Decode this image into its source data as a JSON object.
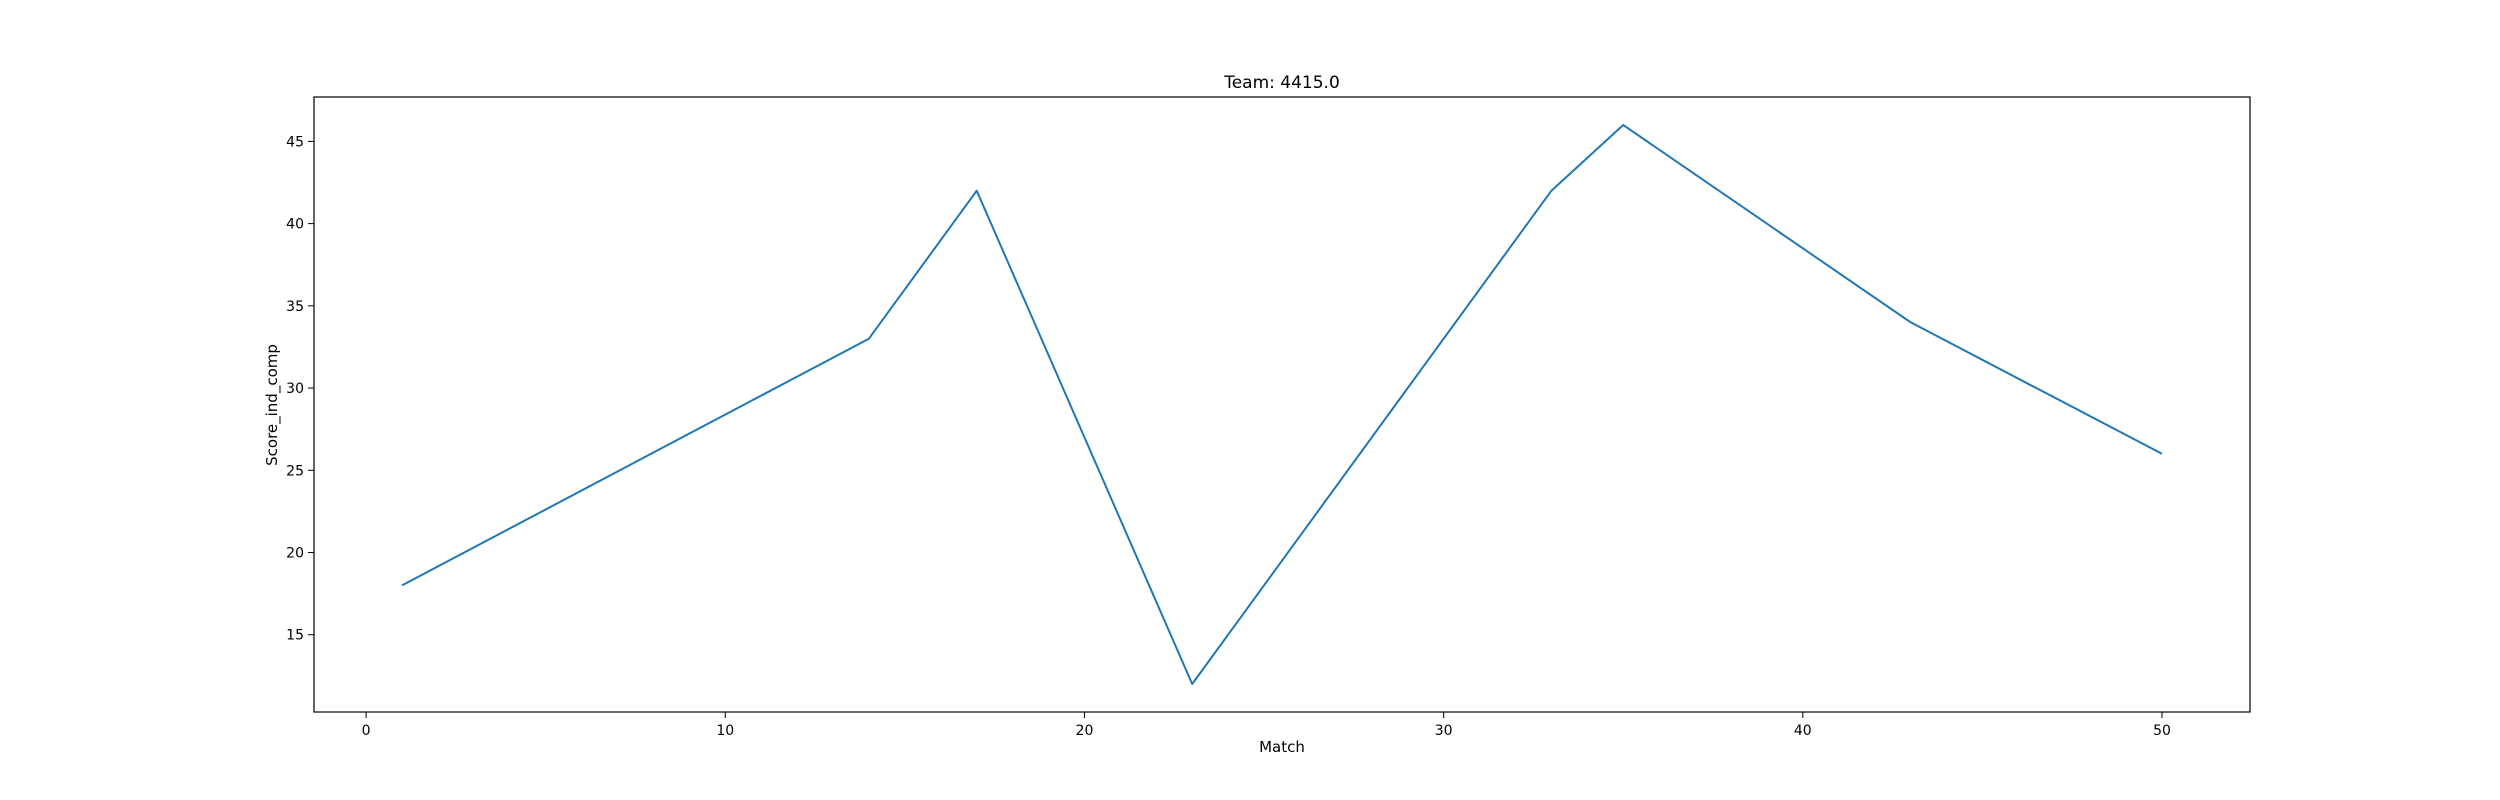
{
  "chart_data": {
    "type": "line",
    "title": "Team: 4415.0",
    "xlabel": "Match",
    "ylabel": "Score_ind_comp",
    "xlim": [
      -1.45,
      52.45
    ],
    "ylim": [
      10.3,
      47.7
    ],
    "xticks": [
      0,
      10,
      20,
      30,
      40,
      50
    ],
    "yticks": [
      15,
      20,
      25,
      30,
      35,
      40,
      45
    ],
    "grid": false,
    "series": [
      {
        "color": "#1f77b4",
        "x": [
          1,
          14,
          17,
          23,
          33,
          35,
          43,
          50
        ],
        "y": [
          18,
          33,
          42,
          12,
          42,
          46,
          34,
          26
        ]
      }
    ]
  }
}
